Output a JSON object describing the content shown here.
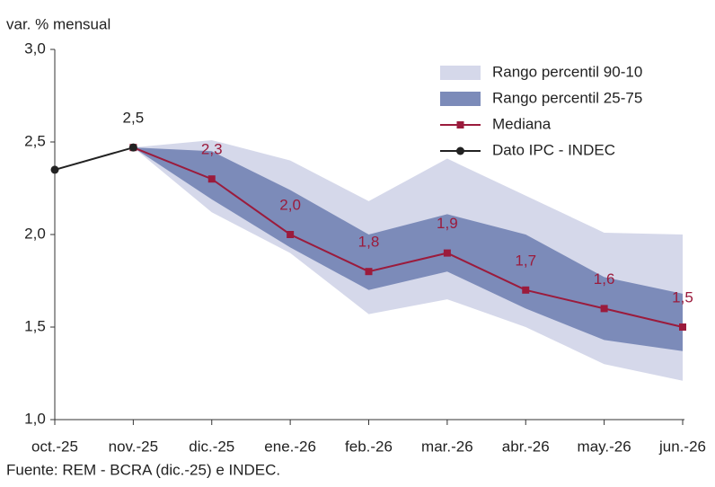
{
  "chart_data": {
    "type": "line",
    "y_label": "var. % mensual",
    "source": "Fuente: REM - BCRA (dic.-25) e INDEC.",
    "categories": [
      "oct.-25",
      "nov.-25",
      "dic.-25",
      "ene.-26",
      "feb.-26",
      "mar.-26",
      "abr.-26",
      "may.-26",
      "jun.-26"
    ],
    "ylim": [
      1.0,
      3.0
    ],
    "yticks": [
      {
        "value": 1.0,
        "label": "1,0"
      },
      {
        "value": 1.5,
        "label": "1,5"
      },
      {
        "value": 2.0,
        "label": "2,0"
      },
      {
        "value": 2.5,
        "label": "2,5"
      },
      {
        "value": 3.0,
        "label": "3,0"
      }
    ],
    "legend": "top-right",
    "series": [
      {
        "name": "Rango percentil 90-10",
        "kind": "band",
        "color": "#d5d8ea",
        "upper": [
          null,
          2.47,
          2.51,
          2.4,
          2.18,
          2.41,
          2.21,
          2.01,
          2.0
        ],
        "lower": [
          null,
          2.47,
          2.12,
          1.9,
          1.57,
          1.65,
          1.5,
          1.3,
          1.21
        ]
      },
      {
        "name": "Rango percentil 25-75",
        "kind": "band",
        "color": "#7c8bb9",
        "upper": [
          null,
          2.47,
          2.45,
          2.24,
          2.0,
          2.11,
          2.0,
          1.77,
          1.68
        ],
        "lower": [
          null,
          2.47,
          2.19,
          1.93,
          1.7,
          1.8,
          1.6,
          1.43,
          1.37
        ]
      },
      {
        "name": "Mediana",
        "kind": "line",
        "marker": "square",
        "color": "#9b1b3c",
        "values": [
          null,
          2.47,
          2.3,
          2.0,
          1.8,
          1.9,
          1.7,
          1.6,
          1.5
        ],
        "value_labels": [
          null,
          null,
          "2,3",
          "2,0",
          "1,8",
          "1,9",
          "1,7",
          "1,6",
          "1,5"
        ]
      },
      {
        "name": "Dato IPC - INDEC",
        "kind": "line",
        "marker": "circle",
        "color": "#222222",
        "values": [
          2.35,
          2.47,
          null,
          null,
          null,
          null,
          null,
          null,
          null
        ],
        "value_labels": [
          null,
          "2,5",
          null,
          null,
          null,
          null,
          null,
          null,
          null
        ]
      }
    ]
  }
}
